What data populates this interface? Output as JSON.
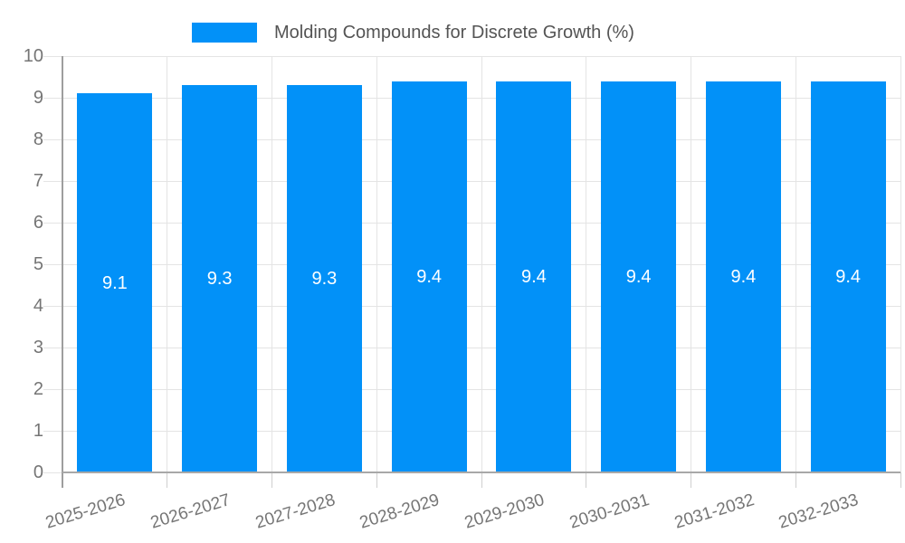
{
  "legend": {
    "label": "Molding Compounds for Discrete Growth (%)",
    "swatch": "blue-square"
  },
  "chart_data": {
    "type": "bar",
    "title": "Molding Compounds for Discrete Growth (%)",
    "categories": [
      "2025-2026",
      "2026-2027",
      "2027-2028",
      "2028-2029",
      "2029-2030",
      "2030-2031",
      "2031-2032",
      "2032-2033"
    ],
    "values": [
      9.1,
      9.3,
      9.3,
      9.4,
      9.4,
      9.4,
      9.4,
      9.4
    ],
    "bar_labels": [
      "9.1",
      "9.3",
      "9.3",
      "9.4",
      "9.4",
      "9.4",
      "9.4",
      "9.4"
    ],
    "xlabel": "",
    "ylabel": "",
    "ylim": [
      0,
      10
    ],
    "y_ticks": [
      0,
      1,
      2,
      3,
      4,
      5,
      6,
      7,
      8,
      9,
      10
    ],
    "grid": "on",
    "legend_position": "top-center",
    "bar_label_position": "inside-middle",
    "x_tick_rotation_deg": -17,
    "colors": {
      "bar": "#0291F8",
      "bar_label": "#FFFFFF",
      "grid": "#E4E4E4",
      "axis": "#9E9E9E",
      "tick_label": "#757575",
      "title": "#545454"
    }
  }
}
